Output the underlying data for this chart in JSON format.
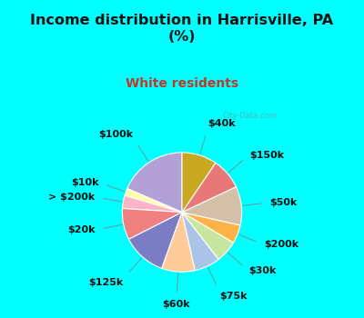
{
  "title": "Income distribution in Harrisville, PA\n(%)",
  "subtitle": "White residents",
  "title_color": "#111111",
  "subtitle_color": "#c0392b",
  "background_color": "#00ffff",
  "labels": [
    "$100k",
    "$10k",
    "> $200k",
    "$20k",
    "$125k",
    "$60k",
    "$75k",
    "$30k",
    "$200k",
    "$50k",
    "$150k",
    "$40k"
  ],
  "values": [
    18.5,
    2.0,
    3.5,
    8.5,
    12.0,
    9.0,
    7.0,
    6.0,
    5.0,
    10.5,
    8.5,
    9.5
  ],
  "colors": [
    "#b3a0d6",
    "#ffffaa",
    "#ffb3c6",
    "#f08080",
    "#7b7dc4",
    "#ffcc99",
    "#aac4e8",
    "#c8e6a0",
    "#ffb347",
    "#d4c0a8",
    "#e87878",
    "#c8a820"
  ],
  "label_fontsize": 8,
  "startangle": 90,
  "watermark": "City-Data.com"
}
